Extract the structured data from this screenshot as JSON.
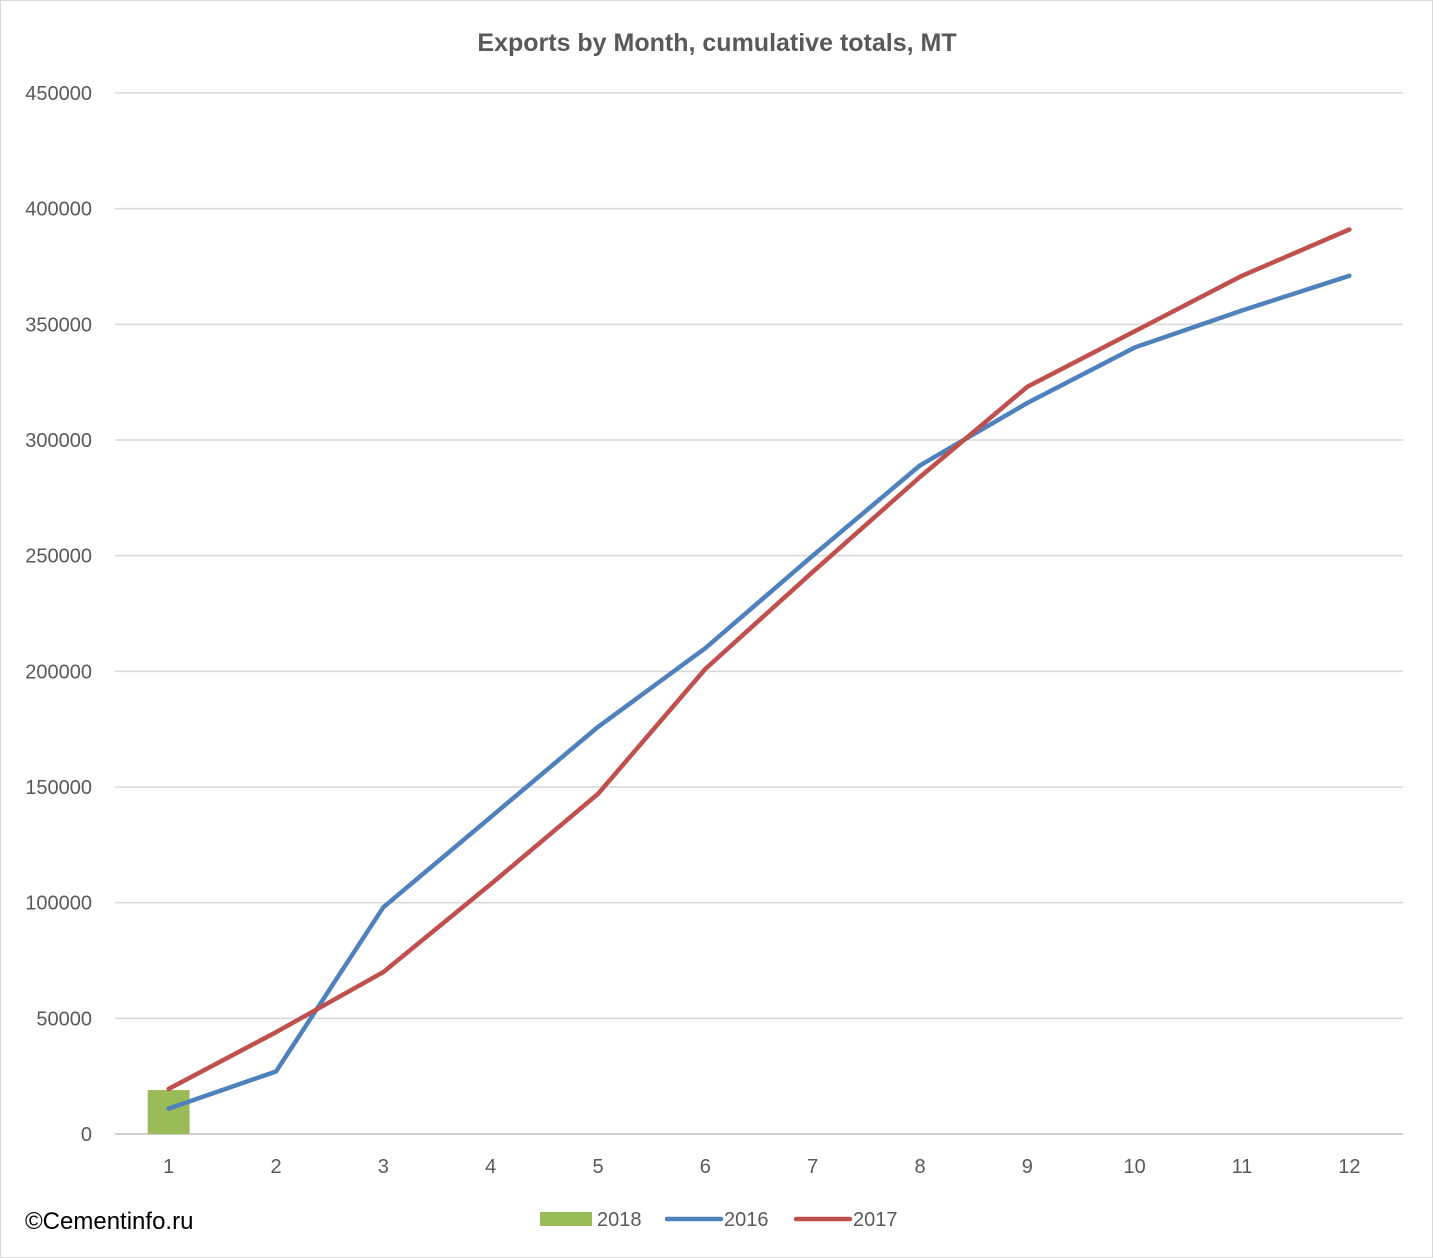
{
  "watermark": "©Cementinfo.ru",
  "chart_data": {
    "type": "line",
    "title": "Exports by Month, cumulative totals, MT",
    "xlabel": "",
    "ylabel": "",
    "categories": [
      "1",
      "2",
      "3",
      "4",
      "5",
      "6",
      "7",
      "8",
      "9",
      "10",
      "11",
      "12"
    ],
    "ylim": [
      0,
      450000
    ],
    "yticks": [
      0,
      50000,
      100000,
      150000,
      200000,
      250000,
      300000,
      350000,
      400000,
      450000
    ],
    "ytick_labels": [
      "0",
      "50000",
      "100000",
      "150000",
      "200000",
      "250000",
      "300000",
      "350000",
      "400000",
      "450000"
    ],
    "grid": true,
    "legend_position": "bottom",
    "series": [
      {
        "name": "2018",
        "kind": "bar",
        "color": "#9bbb59",
        "values": [
          19000,
          null,
          null,
          null,
          null,
          null,
          null,
          null,
          null,
          null,
          null,
          null
        ]
      },
      {
        "name": "2016",
        "kind": "line",
        "color": "#4f81bd",
        "values": [
          11000,
          27000,
          98000,
          137000,
          176000,
          210000,
          250000,
          289000,
          316000,
          340000,
          356000,
          371000
        ]
      },
      {
        "name": "2017",
        "kind": "line",
        "color": "#c0504d",
        "values": [
          19500,
          44000,
          70000,
          108000,
          147000,
          201000,
          243000,
          284000,
          323000,
          347000,
          371000,
          391000
        ]
      }
    ]
  }
}
